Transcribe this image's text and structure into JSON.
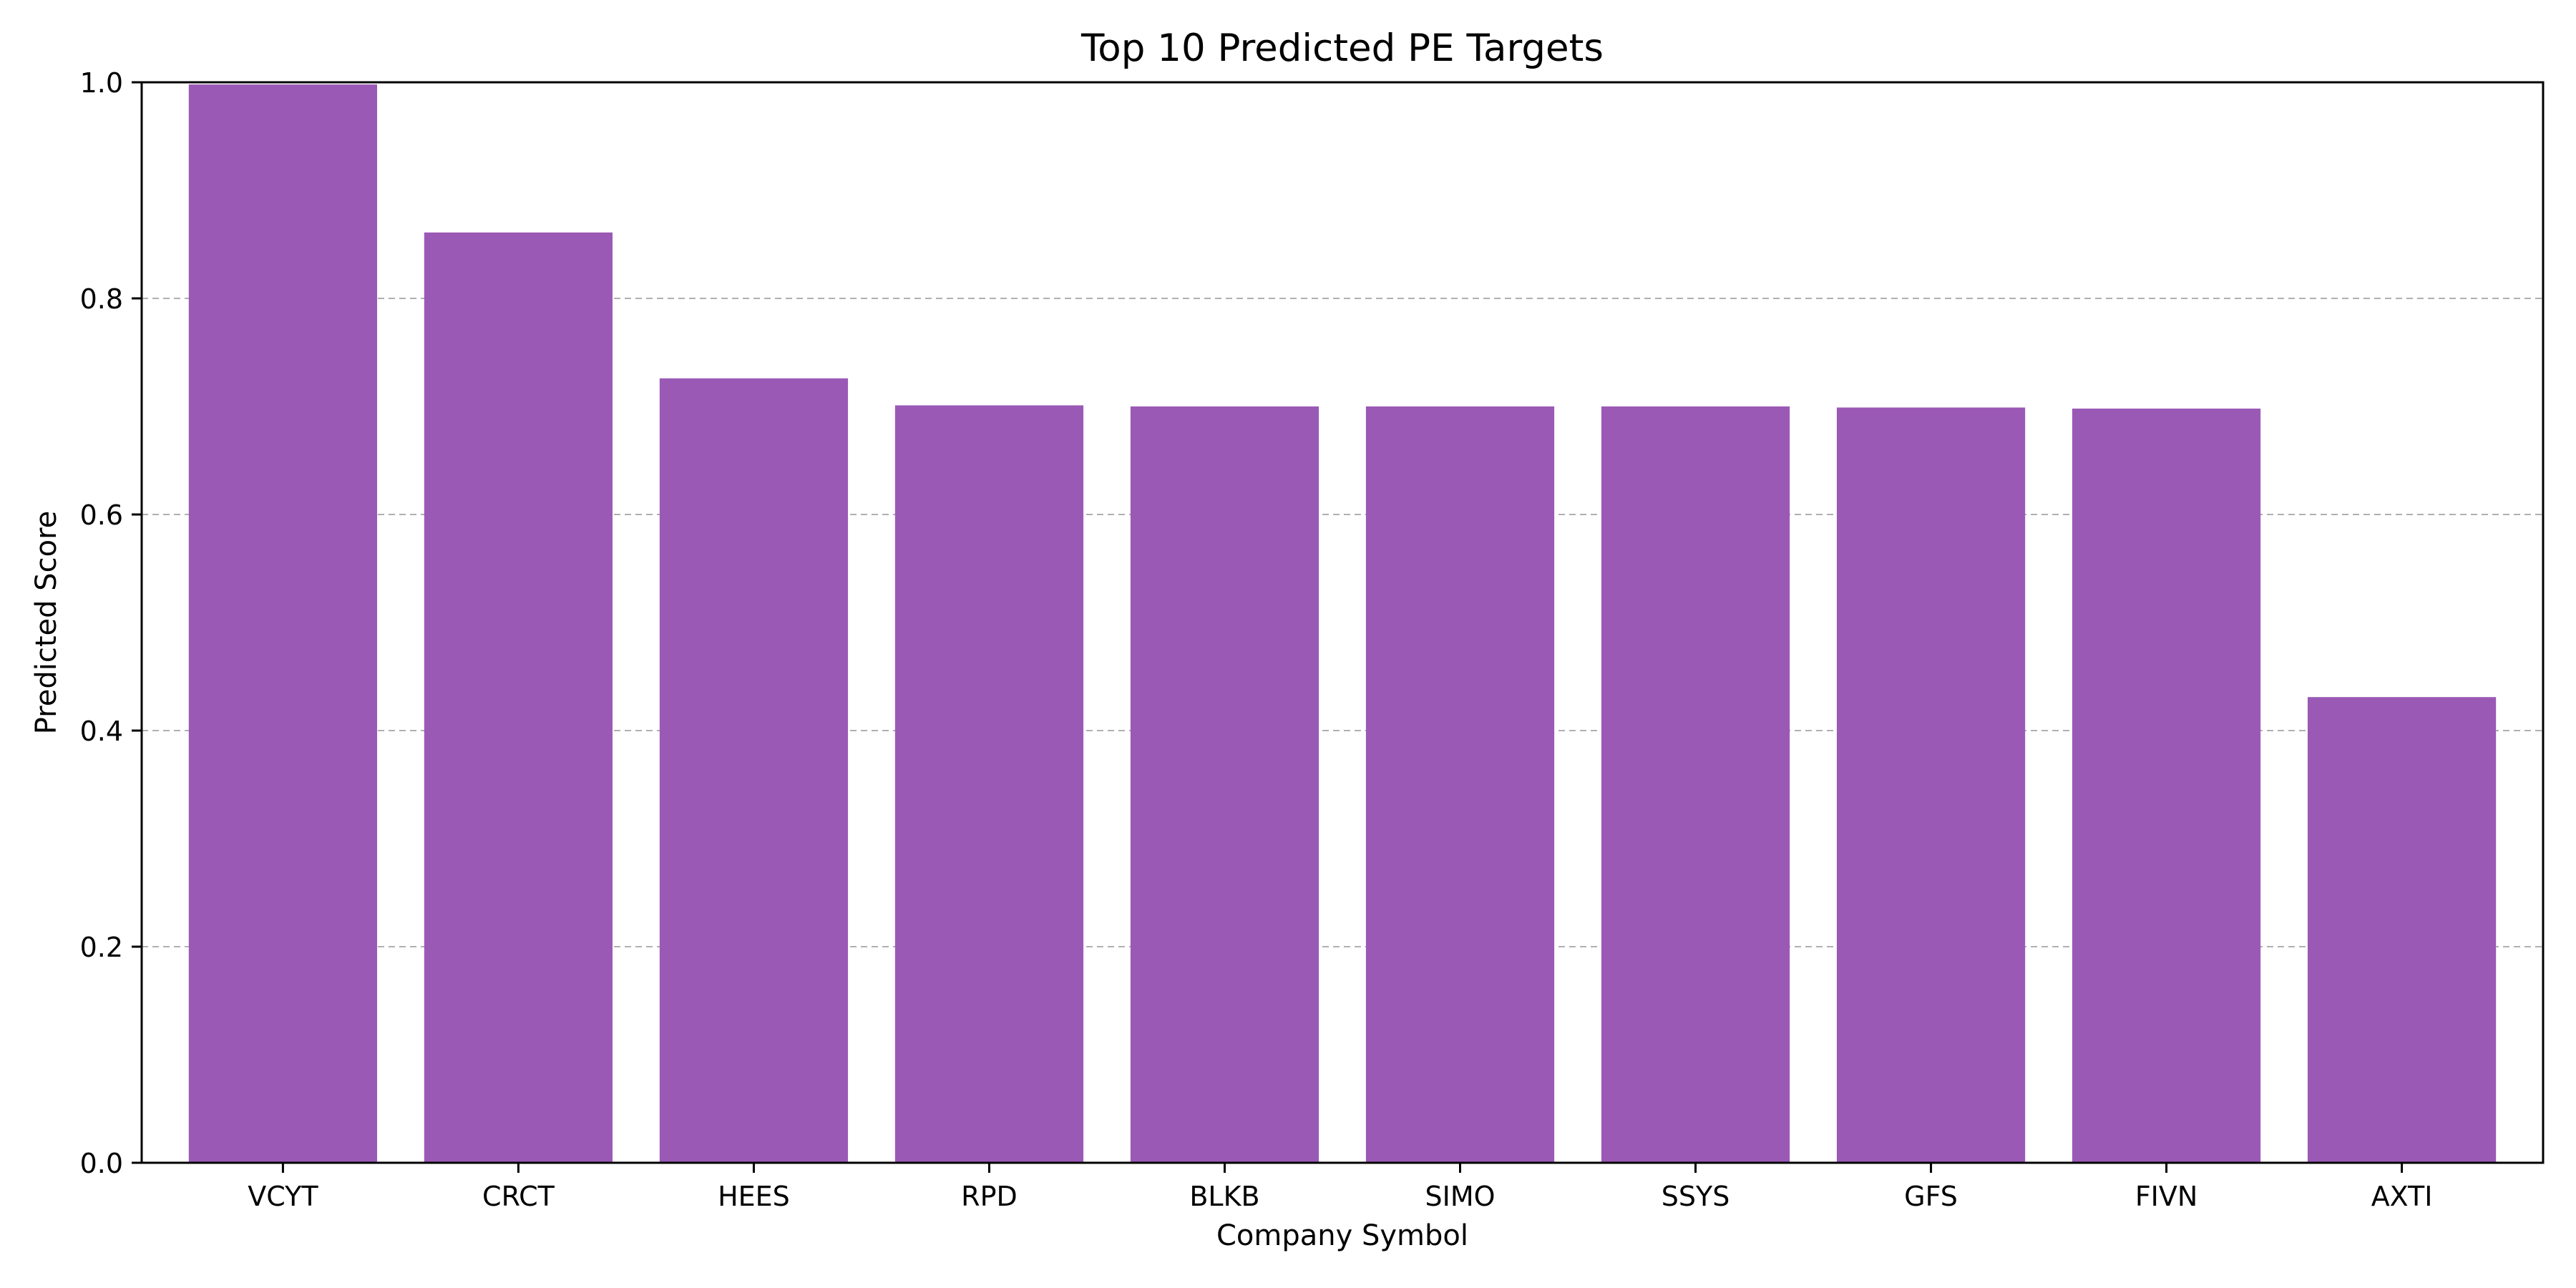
{
  "chart_data": {
    "type": "bar",
    "title": "Top 10 Predicted PE Targets",
    "xlabel": "Company Symbol",
    "ylabel": "Predicted Score",
    "categories": [
      "VCYT",
      "CRCT",
      "HEES",
      "RPD",
      "BLKB",
      "SIMO",
      "SSYS",
      "GFS",
      "FIVN",
      "AXTI"
    ],
    "values": [
      0.998,
      0.861,
      0.726,
      0.701,
      0.7,
      0.7,
      0.7,
      0.699,
      0.698,
      0.431
    ],
    "ylim": [
      0.0,
      1.0
    ],
    "yticks": [
      0.0,
      0.2,
      0.4,
      0.6,
      0.8,
      1.0
    ],
    "ytick_labels": [
      "0.0",
      "0.2",
      "0.4",
      "0.6",
      "0.8",
      "1.0"
    ],
    "grid": "y-axis dashed",
    "legend": "none",
    "bar_color": "#9b59b6"
  }
}
